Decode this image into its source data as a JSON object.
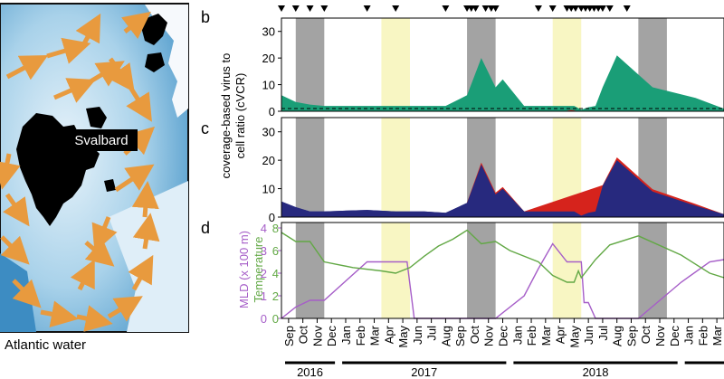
{
  "map": {
    "place_label": "Svalbard",
    "caption": "Atlantic water"
  },
  "panel_labels": {
    "b": "b",
    "c": "c",
    "d": "d"
  },
  "labels": {
    "cvcr_ylabel_line1": "coverage-based  virus to",
    "cvcr_ylabel_line2": "cell ratio (cVCR)",
    "mld_ylabel": "MLD (x 100 m)",
    "temp_ylabel": "Temperature"
  },
  "colors": {
    "green_fill": "#1a9e77",
    "navy_fill": "#27297e",
    "red_fill": "#d6231c",
    "purple_line": "#a65ec8",
    "green_line": "#62a845",
    "grey_band": "#a3a3a3",
    "yellow_band": "#f8f6c3",
    "ocean": "#5aa8d4",
    "arrow": "#e89a3e"
  },
  "chart_data": [
    {
      "type": "area",
      "panel": "b",
      "title": "",
      "ylabel": "coverage-based virus to cell ratio (cVCR)",
      "x_unit": "months since Sep 2016",
      "ylim": [
        0,
        35
      ],
      "yticks": [
        0,
        10,
        20,
        30
      ],
      "reference_line_y": 1,
      "series": [
        {
          "name": "cVCR",
          "color": "#1a9e77",
          "x": [
            0,
            1,
            2,
            3,
            6,
            8,
            10,
            11.5,
            13,
            14,
            15,
            15.5,
            17,
            18,
            19,
            20,
            20.5,
            21,
            21.5,
            22,
            22.5,
            23.5,
            26,
            29,
            31
          ],
          "values": [
            6,
            3.5,
            2.5,
            2,
            2,
            2,
            2,
            2,
            6,
            20,
            9,
            12,
            2,
            2,
            2,
            2,
            2,
            0.6,
            1.5,
            2,
            9,
            21,
            9,
            5,
            1
          ]
        },
        {
          "name": "red component",
          "color": "#d6231c",
          "x": [
            19.8,
            20.3,
            20.8
          ],
          "values": [
            0,
            0.5,
            0
          ]
        }
      ]
    },
    {
      "type": "area",
      "panel": "c",
      "ylim": [
        0,
        35
      ],
      "yticks": [
        0,
        10,
        20,
        30
      ],
      "series": [
        {
          "name": "cVCR",
          "color": "#27297e",
          "x": [
            0,
            1,
            2,
            3,
            6,
            8,
            10,
            11.5,
            13,
            14,
            15,
            15.5,
            17,
            18,
            19,
            20,
            20.5,
            21,
            21.5,
            22,
            22.5,
            23.5,
            26,
            29,
            31
          ],
          "values": [
            5.5,
            3.5,
            2,
            2,
            2.5,
            2,
            2,
            1.5,
            5,
            18.5,
            8,
            10,
            2,
            2,
            2,
            2,
            2,
            0.5,
            1.5,
            2,
            11,
            20,
            9,
            4,
            1
          ]
        },
        {
          "name": "red component",
          "color": "#d6231c",
          "x": [
            13,
            14,
            15,
            15.5,
            17,
            22.5,
            23.5,
            26,
            29,
            31
          ],
          "values": [
            5.2,
            19.2,
            8.6,
            10.6,
            2,
            11.2,
            21,
            9.8,
            4.6,
            1
          ]
        }
      ]
    },
    {
      "type": "line",
      "panel": "d",
      "ylabel_left": "MLD (x 100 m)",
      "ylabel_right": "Temperature",
      "ylim_left": [
        0,
        4
      ],
      "ylim_right": [
        0,
        8
      ],
      "yticks_left": [
        0,
        1,
        2,
        3,
        4
      ],
      "yticks_right": [
        0,
        2,
        4,
        6,
        8
      ],
      "series": [
        {
          "name": "MLD",
          "color": "#a65ec8",
          "axis": "left",
          "x": [
            0,
            1,
            2,
            3,
            6,
            8,
            8.8,
            9.3,
            12,
            13,
            15,
            17,
            18,
            19,
            20,
            20.3,
            20.6,
            21,
            21.2,
            21.5,
            22,
            25,
            28,
            30,
            31
          ],
          "values": [
            0,
            0.5,
            0.8,
            0.8,
            2.5,
            2.5,
            2.5,
            0,
            0,
            0,
            0,
            1,
            2.2,
            3.3,
            2.5,
            2.5,
            2.5,
            2.5,
            0.7,
            0.7,
            0,
            0,
            1.6,
            2.5,
            2.6
          ]
        },
        {
          "name": "Temperature",
          "color": "#62a845",
          "axis": "right",
          "x": [
            0,
            1,
            2,
            3,
            5,
            7,
            8,
            9,
            10,
            11,
            12,
            13,
            14,
            15,
            16,
            18,
            19,
            20,
            20.5,
            20.8,
            21,
            22,
            23,
            25,
            28,
            30,
            31
          ],
          "values": [
            7.6,
            6.8,
            6.8,
            5,
            4.5,
            4.2,
            4,
            4.5,
            5.5,
            6.4,
            7,
            7.8,
            6.6,
            6.8,
            6,
            5,
            3.8,
            3.2,
            3.2,
            4.2,
            3.6,
            5.2,
            6.5,
            7.3,
            5.6,
            4,
            3.6
          ]
        }
      ]
    }
  ],
  "timeline": {
    "month_labels": [
      "Sep",
      "Oct",
      "Nov",
      "Dec",
      "Jan",
      "Feb",
      "Mar",
      "Apr",
      "May",
      "Jun",
      "Jul",
      "Aug",
      "Sep",
      "Oct",
      "Nov",
      "Dec",
      "Jan",
      "Feb",
      "Mar",
      "Apr",
      "May",
      "Jun",
      "Jul",
      "Aug",
      "Sep",
      "Oct",
      "Nov",
      "Dec",
      "Jan",
      "Feb",
      "Mar"
    ],
    "years": [
      {
        "label": "2016",
        "start": 0,
        "end": 3
      },
      {
        "label": "2017",
        "start": 4,
        "end": 15
      },
      {
        "label": "2018",
        "start": 16,
        "end": 27
      },
      {
        "label": "",
        "start": 28,
        "end": 31
      }
    ],
    "dark_periods": [
      [
        1,
        3
      ],
      [
        13,
        15
      ],
      [
        25,
        27
      ]
    ],
    "polar_day_periods": [
      [
        7,
        9
      ],
      [
        19,
        21
      ]
    ],
    "sample_markers": [
      0,
      1,
      2,
      3,
      6,
      8,
      11.5,
      13,
      13.3,
      13.6,
      14.3,
      14.7,
      15,
      18,
      19,
      20,
      20.3,
      20.6,
      21,
      21.3,
      21.6,
      21.9,
      22.2,
      22.5,
      23,
      24.2
    ]
  }
}
